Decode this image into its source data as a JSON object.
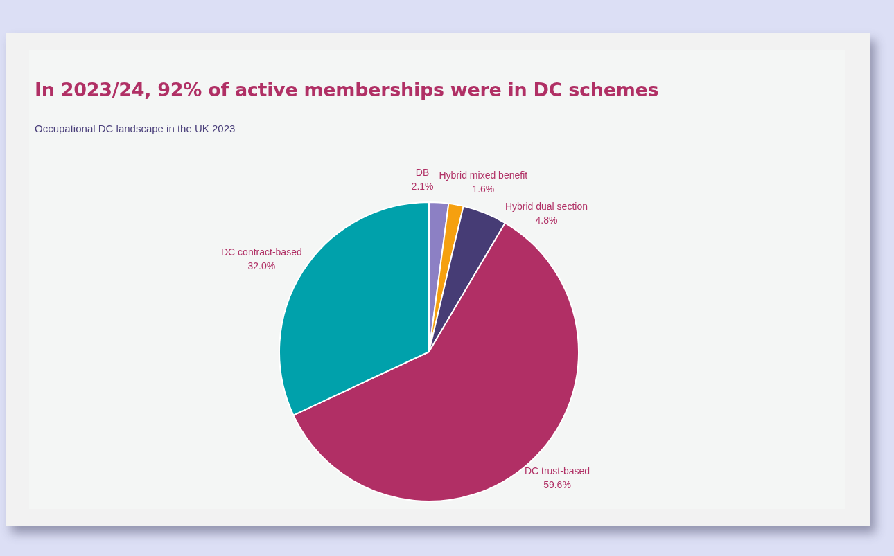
{
  "chart_data": {
    "type": "pie",
    "title": "In 2023/24, 92% of active memberships were in DC schemes",
    "subtitle": "Occupational DC landscape in the UK 2023",
    "categories": [
      "DB",
      "Hybrid mixed benefit",
      "Hybrid dual section",
      "DC trust-based",
      "DC contract-based"
    ],
    "values": [
      2.1,
      1.6,
      4.8,
      59.6,
      32.0
    ],
    "colors": [
      "#8c80c4",
      "#f5a00f",
      "#463c75",
      "#b12f65",
      "#00a1ab"
    ],
    "value_labels": [
      "2.1%",
      "1.6%",
      "4.8%",
      "59.6%",
      "32.0%"
    ],
    "legend": false
  }
}
